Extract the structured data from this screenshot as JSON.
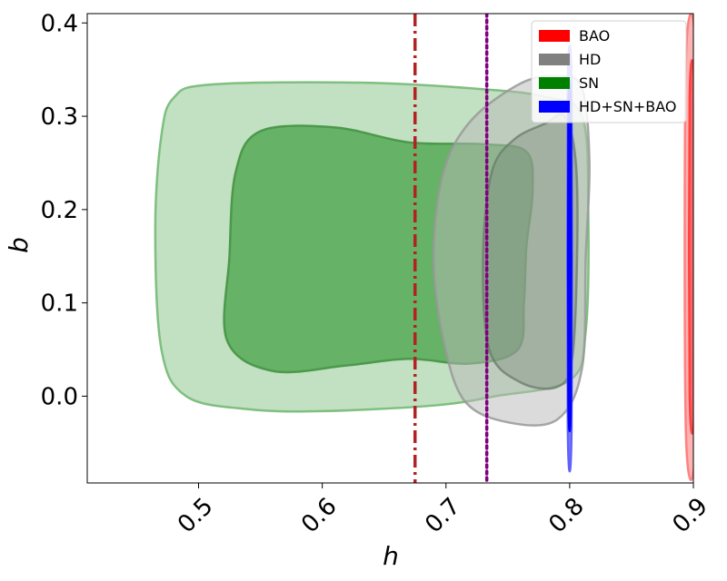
{
  "chart_data": {
    "type": "contour",
    "xlabel": "h",
    "ylabel": "b",
    "xlim": [
      0.41,
      0.9
    ],
    "ylim": [
      -0.093,
      0.41
    ],
    "xticks": [
      {
        "value": 0.5,
        "label": "0.5"
      },
      {
        "value": 0.6,
        "label": "0.6"
      },
      {
        "value": 0.7,
        "label": "0.7"
      },
      {
        "value": 0.8,
        "label": "0.8"
      },
      {
        "value": 0.9,
        "label": "0.9"
      }
    ],
    "yticks": [
      {
        "value": 0.0,
        "label": "0.0"
      },
      {
        "value": 0.1,
        "label": "0.1"
      },
      {
        "value": 0.2,
        "label": "0.2"
      },
      {
        "value": 0.3,
        "label": "0.3"
      },
      {
        "value": 0.4,
        "label": "0.4"
      }
    ],
    "xtick_rotation": 45,
    "grid": false,
    "legend_position": "top-right",
    "vlines": [
      {
        "x": 0.675,
        "color": "#b22222",
        "style": "dash-dot"
      },
      {
        "x": 0.733,
        "color": "#800080",
        "style": "dotted"
      }
    ],
    "series": [
      {
        "name": "SN",
        "color": "#008000",
        "contours": [
          {
            "level": "outer",
            "fill": "#c2e0c2",
            "stroke": "#7fbf7f",
            "points": [
              [
                0.51,
                0.334
              ],
              [
                0.63,
                0.336
              ],
              [
                0.72,
                0.33
              ],
              [
                0.78,
                0.321
              ],
              [
                0.81,
                0.3
              ],
              [
                0.815,
                0.2
              ],
              [
                0.813,
                0.07
              ],
              [
                0.8,
                0.017
              ],
              [
                0.74,
                0.0
              ],
              [
                0.69,
                -0.01
              ],
              [
                0.6,
                -0.016
              ],
              [
                0.54,
                -0.014
              ],
              [
                0.49,
                0.0
              ],
              [
                0.47,
                0.05
              ],
              [
                0.465,
                0.18
              ],
              [
                0.47,
                0.28
              ],
              [
                0.48,
                0.32
              ]
            ]
          },
          {
            "level": "inner",
            "fill": "#66b266",
            "stroke": "#4c994c",
            "points": [
              [
                0.55,
                0.284
              ],
              [
                0.61,
                0.288
              ],
              [
                0.67,
                0.272
              ],
              [
                0.73,
                0.27
              ],
              [
                0.765,
                0.262
              ],
              [
                0.77,
                0.22
              ],
              [
                0.765,
                0.16
              ],
              [
                0.763,
                0.1
              ],
              [
                0.758,
                0.05
              ],
              [
                0.72,
                0.035
              ],
              [
                0.67,
                0.04
              ],
              [
                0.62,
                0.033
              ],
              [
                0.56,
                0.027
              ],
              [
                0.523,
                0.06
              ],
              [
                0.525,
                0.15
              ],
              [
                0.53,
                0.24
              ]
            ]
          }
        ]
      },
      {
        "name": "HD",
        "color": "#808080",
        "contours": [
          {
            "level": "outer",
            "fill": "#b8b8b8",
            "stroke": "#999999",
            "opacity": 0.5,
            "points": [
              [
                0.76,
                0.335
              ],
              [
                0.79,
                0.343
              ],
              [
                0.81,
                0.33
              ],
              [
                0.816,
                0.25
              ],
              [
                0.813,
                0.15
              ],
              [
                0.81,
                0.03
              ],
              [
                0.79,
                -0.025
              ],
              [
                0.75,
                -0.028
              ],
              [
                0.715,
                -0.005
              ],
              [
                0.698,
                0.06
              ],
              [
                0.69,
                0.15
              ],
              [
                0.698,
                0.24
              ],
              [
                0.72,
                0.295
              ]
            ]
          },
          {
            "level": "inner",
            "fill": "#7a8a7a",
            "stroke": "#6b7b6b",
            "opacity": 0.4,
            "points": [
              [
                0.78,
                0.292
              ],
              [
                0.796,
                0.3
              ],
              [
                0.805,
                0.25
              ],
              [
                0.806,
                0.15
              ],
              [
                0.802,
                0.04
              ],
              [
                0.79,
                0.01
              ],
              [
                0.76,
                0.015
              ],
              [
                0.735,
                0.05
              ],
              [
                0.73,
                0.15
              ],
              [
                0.737,
                0.24
              ],
              [
                0.755,
                0.275
              ]
            ]
          }
        ]
      },
      {
        "name": "HD+SN+BAO",
        "color": "#0000ff",
        "contours": [
          {
            "level": "outer",
            "fill": "#8080ff",
            "stroke": "#6060ff",
            "points": [
              [
                0.7985,
                0.33
              ],
              [
                0.8015,
                0.33
              ],
              [
                0.8015,
                -0.035
              ],
              [
                0.7985,
                -0.035
              ]
            ]
          },
          {
            "level": "inner",
            "fill": "#0000ff",
            "stroke": "#0000ff",
            "points": [
              [
                0.799,
                0.3
              ],
              [
                0.801,
                0.3
              ],
              [
                0.801,
                0.0
              ],
              [
                0.799,
                0.0
              ]
            ]
          }
        ]
      },
      {
        "name": "BAO",
        "color": "#ff0000",
        "contours": [
          {
            "level": "outer",
            "fill": "#ffb3b3",
            "stroke": "#ff8080",
            "points": [
              [
                0.894,
                0.36
              ],
              [
                0.902,
                0.36
              ],
              [
                0.902,
                -0.04
              ],
              [
                0.894,
                -0.04
              ]
            ]
          },
          {
            "level": "inner",
            "fill": "#ff6666",
            "stroke": "#ff4040",
            "points": [
              [
                0.897,
                0.32
              ],
              [
                0.901,
                0.32
              ],
              [
                0.901,
                0.0
              ],
              [
                0.897,
                0.0
              ]
            ]
          }
        ]
      }
    ],
    "legend": [
      {
        "label": "BAO",
        "color": "#ff0000"
      },
      {
        "label": "HD",
        "color": "#808080"
      },
      {
        "label": "SN",
        "color": "#008000"
      },
      {
        "label": "HD+SN+BAO",
        "color": "#0000ff"
      }
    ]
  }
}
